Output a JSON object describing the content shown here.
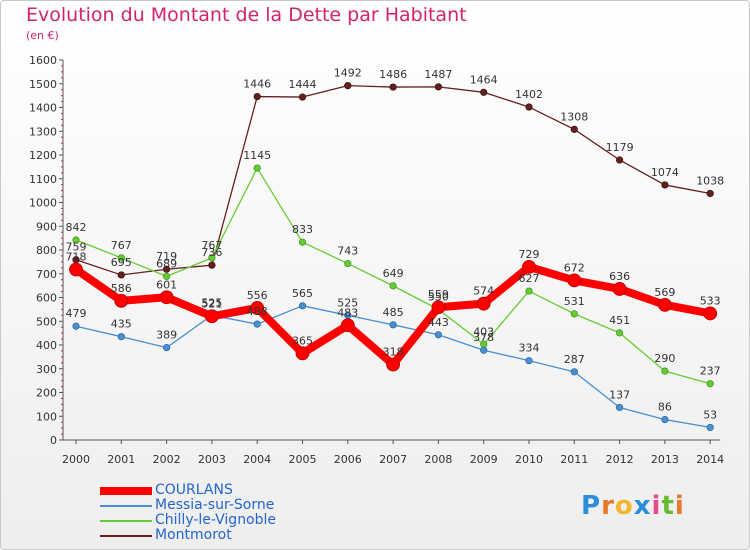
{
  "chart_data": {
    "type": "line",
    "title": "Evolution du Montant de la Dette par Habitant",
    "subtitle": "(en €)",
    "x": [
      "2000",
      "2001",
      "2002",
      "2003",
      "2004",
      "2005",
      "2006",
      "2007",
      "2008",
      "2009",
      "2010",
      "2011",
      "2012",
      "2013",
      "2014"
    ],
    "ylim": [
      0,
      1600
    ],
    "yticks": [
      0,
      100,
      200,
      300,
      400,
      500,
      600,
      700,
      800,
      900,
      1000,
      1100,
      1200,
      1300,
      1400,
      1500,
      1600
    ],
    "grid": false,
    "legend_position": "bottom-left",
    "series": [
      {
        "name": "COURLANS",
        "color": "#ff0000",
        "values": [
          718,
          586,
          601,
          521,
          556,
          365,
          483,
          318,
          559,
          574,
          729,
          672,
          636,
          569,
          533
        ]
      },
      {
        "name": "Messia-sur-Sorne",
        "color": "#4a90d0",
        "values": [
          479,
          435,
          389,
          525,
          488,
          565,
          525,
          485,
          443,
          378,
          334,
          287,
          137,
          86,
          53
        ]
      },
      {
        "name": "Chilly-le-Vignoble",
        "color": "#66cc33",
        "values": [
          842,
          767,
          689,
          767,
          1145,
          833,
          743,
          649,
          550,
          403,
          627,
          531,
          451,
          290,
          237
        ]
      },
      {
        "name": "Montmorot",
        "color": "#661f1f",
        "values": [
          759,
          695,
          719,
          736,
          1446,
          1444,
          1492,
          1486,
          1487,
          1464,
          1402,
          1308,
          1179,
          1074,
          1038
        ]
      }
    ]
  },
  "logo": {
    "letters": [
      "P",
      "r",
      "o",
      "x",
      "i",
      "t",
      "i"
    ],
    "colors": [
      "#2a8fd8",
      "#e8782a",
      "#f0b82a",
      "#2a8fd8",
      "#e84a8a",
      "#66bb33",
      "#e8782a"
    ]
  }
}
